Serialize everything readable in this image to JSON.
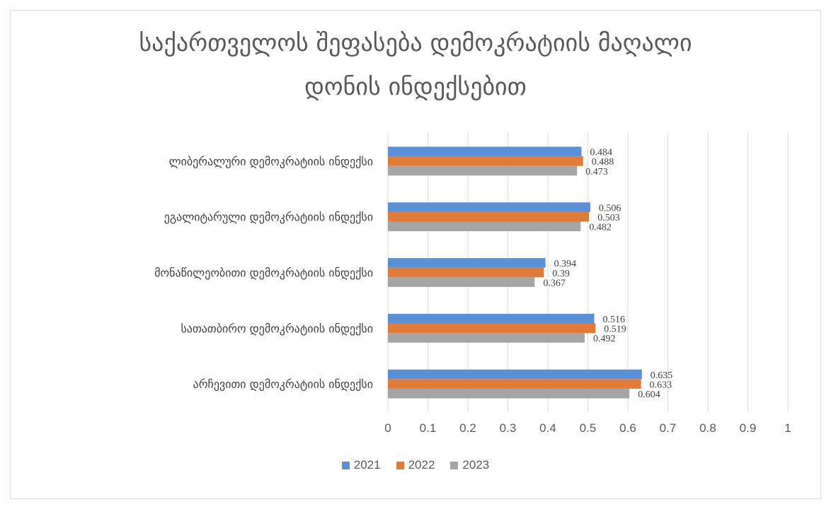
{
  "chart_data": {
    "type": "bar",
    "orientation": "horizontal",
    "title_lines": [
      "საქართველოს შეფასება დემოკრატიის მაღალი",
      "დონის ინდექსებით"
    ],
    "categories": [
      "ლიბერალური დემოკრატიის ინდექსი",
      "ეგალიტარული დემოკრატიის ინდექსი",
      "მონაწილეობითი დემოკრატიის ინდექსი",
      "სათათბირო დემოკრატიის ინდექსი",
      "არჩევითი დემოკრატიის ინდექსი"
    ],
    "series": [
      {
        "name": "2021",
        "color": "#5b8fd6",
        "values": [
          0.484,
          0.506,
          0.394,
          0.516,
          0.635
        ],
        "labels": [
          "0.484",
          "0.506",
          "0.394",
          "0.516",
          "0.635"
        ]
      },
      {
        "name": "2022",
        "color": "#e07b39",
        "values": [
          0.488,
          0.503,
          0.39,
          0.519,
          0.633
        ],
        "labels": [
          "0.488",
          "0.503",
          "0.39",
          "0.519",
          "0.633"
        ]
      },
      {
        "name": "2023",
        "color": "#a5a5a5",
        "values": [
          0.473,
          0.482,
          0.367,
          0.492,
          0.604
        ],
        "labels": [
          "0.473",
          "0.482",
          "0.367",
          "0.492",
          "0.604"
        ]
      }
    ],
    "xlim": [
      0,
      1
    ],
    "x_ticks": [
      "0",
      "0.1",
      "0.2",
      "0.3",
      "0.4",
      "0.5",
      "0.6",
      "0.7",
      "0.8",
      "0.9",
      "1"
    ],
    "grid": true,
    "legend_position": "bottom"
  }
}
